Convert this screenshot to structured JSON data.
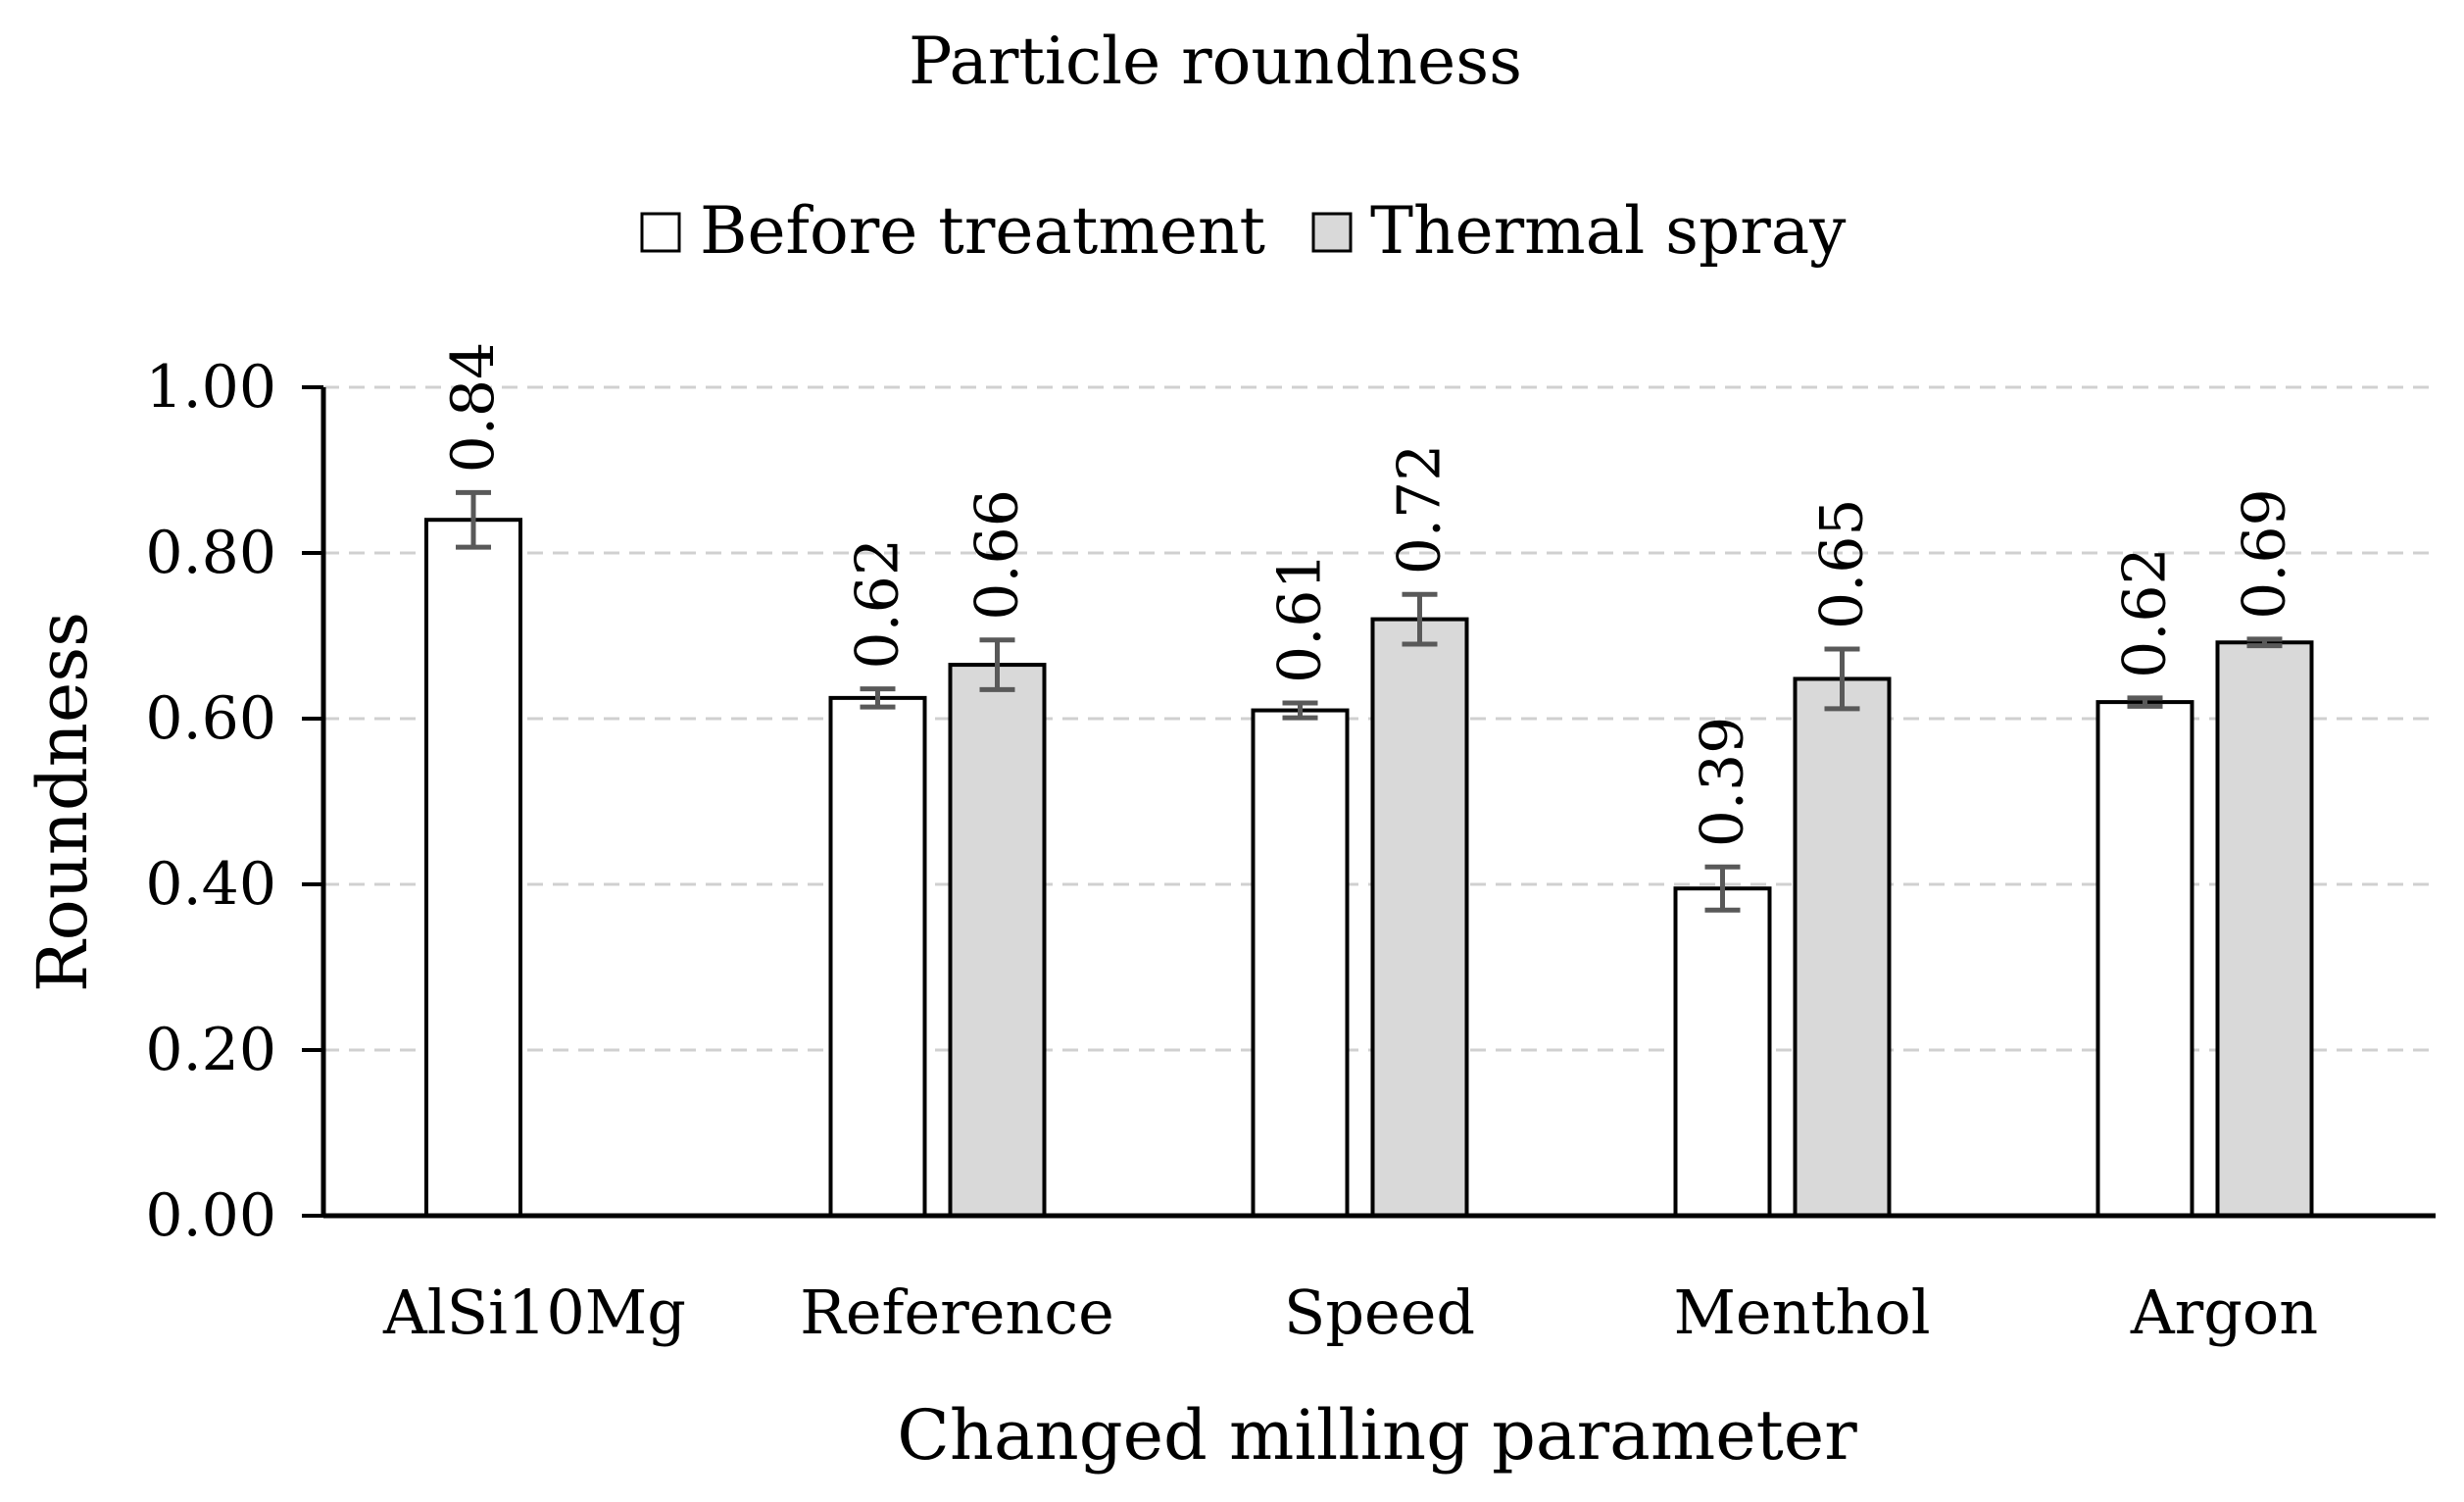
{
  "chart_data": {
    "type": "bar",
    "title": "Particle roundness",
    "xlabel": "Changed milling parameter",
    "ylabel": "Roundness",
    "ylim": [
      0,
      1
    ],
    "yticks": [
      "0.00",
      "0.20",
      "0.40",
      "0.60",
      "0.80",
      "1.00"
    ],
    "grid": true,
    "legend_position": "top-center",
    "categories": [
      "AlSi10Mg",
      "Reference",
      "Speed",
      "Menthol",
      "Argon"
    ],
    "series": [
      {
        "name": "Before treatment",
        "color": "#ffffff",
        "values": [
          0.84,
          0.625,
          0.61,
          0.395,
          0.62
        ],
        "labels": [
          "0.84",
          "0.62",
          "0.61",
          "0.39",
          "0.62"
        ],
        "errors": [
          0.033,
          0.011,
          0.009,
          0.026,
          0.005
        ]
      },
      {
        "name": "Thermal spray",
        "color": "#d9d9d9",
        "values": [
          null,
          0.665,
          0.72,
          0.648,
          0.692
        ],
        "labels": [
          null,
          "0.66",
          "0.72",
          "0.65",
          "0.69"
        ],
        "errors": [
          null,
          0.03,
          0.03,
          0.036,
          0.004
        ]
      }
    ]
  }
}
